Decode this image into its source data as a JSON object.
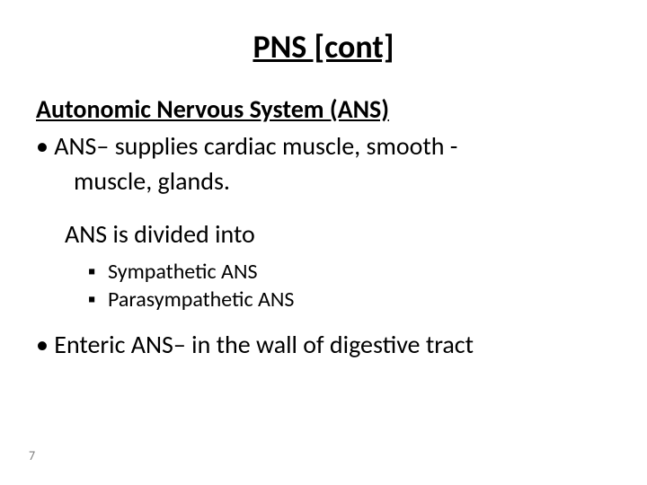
{
  "title": "PNS [cont]",
  "subhead": "Autonomic Nervous System (ANS)",
  "bullets": {
    "b1_line1": "•   ANS– supplies cardiac muscle, smooth -",
    "b1_line2": "muscle, glands.",
    "b2": "ANS is divided into",
    "b3a": "Sympathetic ANS",
    "b3b": "Parasympathetic ANS",
    "b4": "•   Enteric ANS– in the wall of digestive tract"
  },
  "square": "▪",
  "pagenum": "7",
  "colors": {
    "text": "#000000",
    "bg": "#ffffff",
    "pagenum": "#7f7f7f"
  },
  "fontsizes": {
    "title": 36,
    "subhead": 28,
    "body": 28,
    "sub": 24,
    "pagenum": 14
  }
}
